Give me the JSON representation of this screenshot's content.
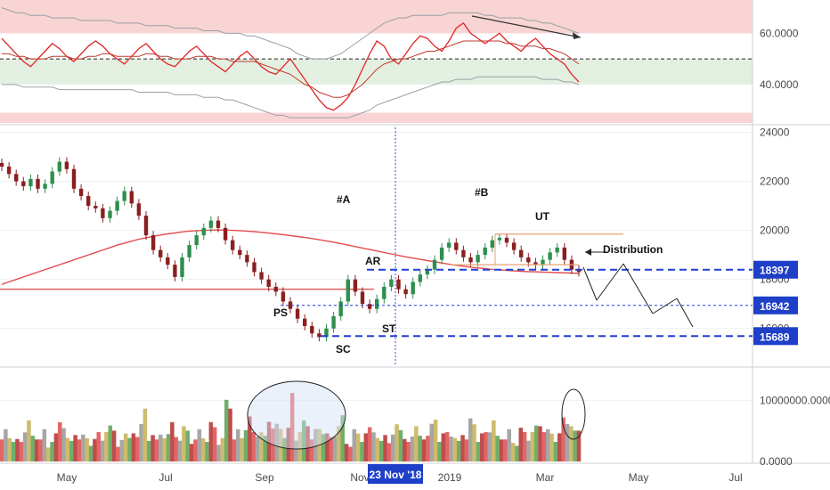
{
  "chart_data": [
    {
      "type": "line",
      "panel": "oscillator",
      "ylim": [
        25,
        73
      ],
      "yticks": [
        "60.0000",
        "40.0000"
      ],
      "bands": [
        {
          "from": 60,
          "to": 73,
          "color": "#f9d4d4"
        },
        {
          "from": 40,
          "to": 50,
          "color": "#e3efe1"
        },
        {
          "from": 25,
          "to": 29,
          "color": "#f9d4d4"
        }
      ],
      "midline": 50,
      "series": [
        {
          "color": "#e02424",
          "values": [
            58,
            55,
            52,
            49,
            47,
            50,
            53,
            56,
            54,
            51,
            49,
            52,
            55,
            57,
            55,
            52,
            50,
            48,
            51,
            54,
            56,
            53,
            50,
            48,
            47,
            50,
            53,
            55,
            52,
            49,
            47,
            45,
            48,
            51,
            53,
            50,
            47,
            45,
            44,
            47,
            50,
            46,
            42,
            38,
            34,
            31,
            30,
            32,
            35,
            40,
            46,
            52,
            57,
            55,
            50,
            48,
            52,
            56,
            59,
            58,
            55,
            53,
            57,
            62,
            64,
            60,
            58,
            56,
            58,
            60,
            57,
            55,
            53,
            56,
            58,
            55,
            52,
            50,
            48,
            44,
            41
          ]
        },
        {
          "color": "#c0392b",
          "values": [
            52,
            52,
            51,
            51,
            50,
            50,
            50,
            51,
            51,
            51,
            50,
            50,
            51,
            51,
            52,
            52,
            51,
            51,
            51,
            51,
            52,
            52,
            51,
            51,
            50,
            50,
            50,
            51,
            51,
            51,
            50,
            50,
            49,
            49,
            49,
            49,
            48,
            47,
            46,
            45,
            44,
            42,
            40,
            39,
            37,
            36,
            35,
            35,
            36,
            38,
            40,
            43,
            46,
            48,
            49,
            50,
            50,
            51,
            52,
            53,
            53,
            54,
            55,
            56,
            57,
            57,
            57,
            57,
            57,
            57,
            56,
            56,
            55,
            55,
            55,
            54,
            54,
            53,
            52,
            50,
            48
          ]
        },
        {
          "color": "#9aa0a6",
          "values": [
            70,
            69,
            68,
            68,
            67,
            67,
            67,
            66,
            66,
            66,
            66,
            65,
            65,
            65,
            65,
            65,
            64,
            64,
            64,
            64,
            63,
            63,
            63,
            63,
            62,
            62,
            62,
            62,
            61,
            61,
            61,
            60,
            60,
            60,
            59,
            59,
            58,
            57,
            56,
            55,
            54,
            52,
            51,
            50,
            50,
            50,
            51,
            52,
            54,
            56,
            58,
            60,
            62,
            64,
            65,
            66,
            66,
            67,
            67,
            67,
            67,
            67,
            68,
            68,
            68,
            68,
            68,
            67,
            67,
            66,
            66,
            66,
            66,
            65,
            65,
            64,
            64,
            63,
            62,
            61,
            60
          ]
        },
        {
          "color": "#9aa0a6",
          "values": [
            40,
            40,
            40,
            39,
            39,
            39,
            39,
            39,
            38,
            38,
            38,
            38,
            38,
            38,
            38,
            38,
            38,
            38,
            38,
            37,
            37,
            37,
            37,
            37,
            36,
            36,
            36,
            36,
            35,
            35,
            35,
            34,
            34,
            33,
            32,
            31,
            30,
            29,
            28,
            28,
            27,
            27,
            27,
            27,
            27,
            27,
            27,
            27,
            27,
            28,
            29,
            30,
            32,
            33,
            34,
            35,
            36,
            37,
            38,
            39,
            40,
            41,
            41,
            42,
            42,
            42,
            43,
            43,
            43,
            43,
            43,
            43,
            43,
            43,
            43,
            42,
            42,
            42,
            41,
            41,
            40
          ]
        }
      ]
    },
    {
      "type": "candlestick",
      "panel": "price",
      "ylim": [
        14500,
        24200
      ],
      "yticks": [
        "24000",
        "22000",
        "20000",
        "18000",
        "16000"
      ],
      "close": [
        22600,
        22300,
        22000,
        21800,
        22100,
        21700,
        21900,
        22400,
        22800,
        22500,
        21700,
        21400,
        21000,
        20900,
        20500,
        20800,
        21200,
        21600,
        21100,
        20600,
        19800,
        19200,
        18900,
        18600,
        18100,
        18900,
        19400,
        19800,
        20100,
        20400,
        20100,
        19600,
        19200,
        19000,
        18700,
        18300,
        18000,
        17700,
        17500,
        17100,
        16800,
        16400,
        16100,
        15800,
        15650,
        16000,
        16500,
        17100,
        18000,
        17500,
        17000,
        16800,
        17200,
        17700,
        18000,
        17600,
        17400,
        17900,
        18200,
        18400,
        18800,
        19300,
        19500,
        19200,
        18900,
        18700,
        19000,
        19300,
        19600,
        19700,
        19500,
        19200,
        18900,
        18700,
        18600,
        18800,
        19100,
        19300,
        18800,
        18400,
        18300
      ],
      "ma200": [
        17800,
        17900,
        18000,
        18100,
        18200,
        18300,
        18400,
        18500,
        18600,
        18700,
        18800,
        18900,
        19000,
        19100,
        19200,
        19300,
        19400,
        19480,
        19560,
        19640,
        19700,
        19760,
        19810,
        19860,
        19900,
        19940,
        19970,
        19990,
        20000,
        20010,
        20020,
        20010,
        20000,
        19990,
        19970,
        19950,
        19920,
        19890,
        19860,
        19830,
        19790,
        19750,
        19710,
        19670,
        19620,
        19570,
        19520,
        19460,
        19400,
        19340,
        19280,
        19220,
        19160,
        19100,
        19040,
        18980,
        18920,
        18870,
        18820,
        18770,
        18720,
        18670,
        18620,
        18580,
        18540,
        18500,
        18470,
        18440,
        18410,
        18390,
        18370,
        18350,
        18330,
        18320,
        18310,
        18300,
        18290,
        18280,
        18270,
        18260,
        18250
      ],
      "levels": [
        {
          "label": "18397",
          "value": 18397
        },
        {
          "label": "16942",
          "value": 16942
        },
        {
          "label": "15689",
          "value": 15689
        }
      ],
      "annotations": [
        "#A",
        "#B",
        "UT",
        "AR",
        "PS",
        "SC",
        "ST",
        "Distribution"
      ],
      "current_date_marker": "23 Nov '18"
    },
    {
      "type": "bar",
      "panel": "volume",
      "ylim": [
        0,
        15000000000
      ],
      "yticks": [
        "10000000.0000",
        "0.0000"
      ],
      "values": [
        6,
        5,
        4,
        7,
        5,
        6,
        3,
        5,
        8,
        4,
        6,
        5,
        4,
        6,
        5,
        7,
        4,
        6,
        5,
        9,
        4,
        6,
        5,
        7,
        5,
        6,
        4,
        6,
        5,
        7,
        4,
        12,
        6,
        5,
        8,
        6,
        5,
        9,
        7,
        6,
        14,
        5,
        8,
        6,
        7,
        5,
        6,
        9,
        4,
        6,
        5,
        7,
        4,
        6,
        5,
        8,
        4,
        6,
        5,
        7,
        9,
        5,
        6,
        4,
        6,
        8,
        5,
        6,
        7,
        5,
        6,
        4,
        6,
        5,
        7,
        8,
        6,
        5,
        9,
        6,
        7
      ],
      "colors": [
        "#e05555",
        "#5fa65a",
        "#9c9c9c",
        "#b83a3a",
        "#c9b45c"
      ]
    }
  ],
  "x_axis": {
    "labels": [
      "May",
      "Jul",
      "Sep",
      "Nov",
      "2019",
      "Mar",
      "May",
      "Jul"
    ],
    "highlight": "23 Nov '18"
  }
}
